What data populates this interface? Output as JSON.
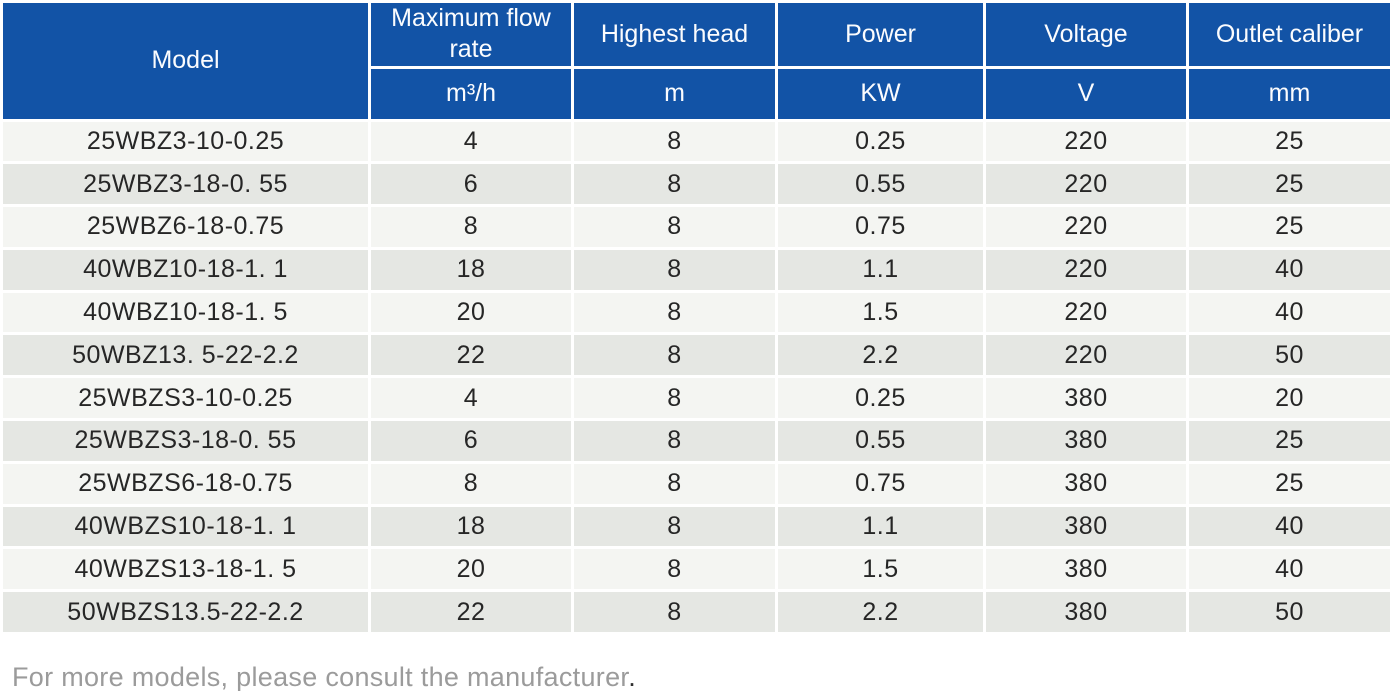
{
  "table": {
    "columns": [
      {
        "id": "model",
        "label": "Model",
        "unit": ""
      },
      {
        "id": "max-flow-rate",
        "label": "Maximum flow rate",
        "unit": "m³/h"
      },
      {
        "id": "highest-head",
        "label": "Highest head",
        "unit": "m"
      },
      {
        "id": "power",
        "label": "Power",
        "unit": "KW"
      },
      {
        "id": "voltage",
        "label": "Voltage",
        "unit": "V"
      },
      {
        "id": "outlet-caliber",
        "label": "Outlet caliber",
        "unit": "mm"
      }
    ],
    "rows": [
      [
        "25WBZ3-10-0.25",
        "4",
        "8",
        "0.25",
        "220",
        "25"
      ],
      [
        "25WBZ3-18-0. 55",
        "6",
        "8",
        "0.55",
        "220",
        "25"
      ],
      [
        "25WBZ6-18-0.75",
        "8",
        "8",
        "0.75",
        "220",
        "25"
      ],
      [
        "40WBZ10-18-1. 1",
        "18",
        "8",
        "1.1",
        "220",
        "40"
      ],
      [
        "40WBZ10-18-1. 5",
        "20",
        "8",
        "1.5",
        "220",
        "40"
      ],
      [
        "50WBZ13. 5-22-2.2",
        "22",
        "8",
        "2.2",
        "220",
        "50"
      ],
      [
        "25WBZS3-10-0.25",
        "4",
        "8",
        "0.25",
        "380",
        "20"
      ],
      [
        "25WBZS3-18-0. 55",
        "6",
        "8",
        "0.55",
        "380",
        "25"
      ],
      [
        "25WBZS6-18-0.75",
        "8",
        "8",
        "0.75",
        "380",
        "25"
      ],
      [
        "40WBZS10-18-1. 1",
        "18",
        "8",
        "1.1",
        "380",
        "40"
      ],
      [
        "40WBZS13-18-1. 5",
        "20",
        "8",
        "1.5",
        "380",
        "40"
      ],
      [
        "50WBZS13.5-22-2.2",
        "22",
        "8",
        "2.2",
        "380",
        "50"
      ]
    ]
  },
  "footer": {
    "text": "For more models, please consult the manufacturer",
    "period": "."
  },
  "colors": {
    "header_bg": "#1253a6",
    "header_text": "#ffffff",
    "row_odd_bg": "#f4f5f2",
    "row_even_bg": "#e5e7e3",
    "data_text": "#262626",
    "footer_text": "#9b9b9b"
  }
}
